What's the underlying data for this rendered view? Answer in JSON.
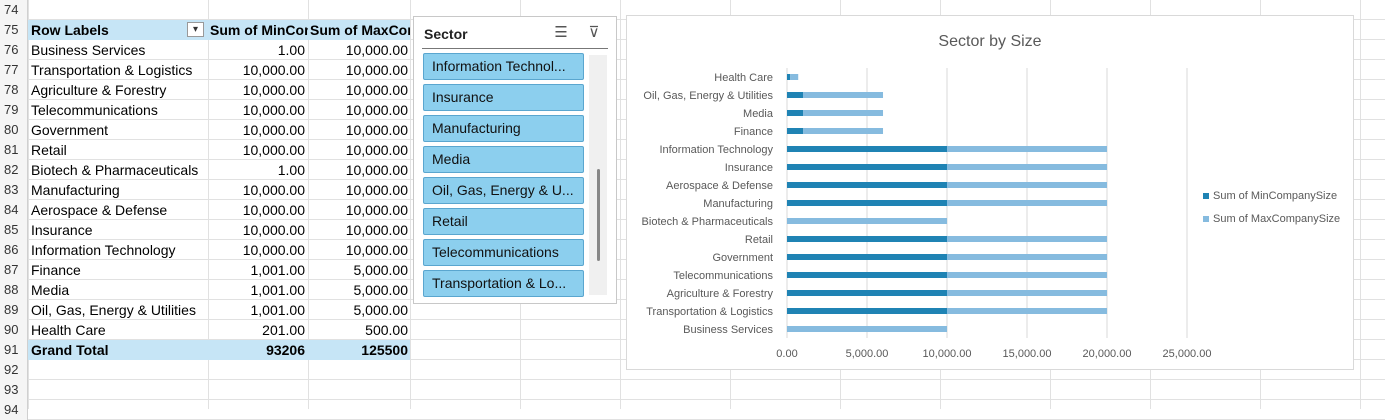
{
  "row_numbers": [
    "74",
    "75",
    "76",
    "77",
    "78",
    "79",
    "80",
    "81",
    "82",
    "83",
    "84",
    "85",
    "86",
    "87",
    "88",
    "89",
    "90",
    "91",
    "92",
    "93",
    "94"
  ],
  "pivot": {
    "header": {
      "labels": "Row Labels",
      "min": "Sum of MinCompanySize",
      "max": "Sum of MaxCompanySize"
    },
    "rows": [
      {
        "label": "Business Services",
        "min": "1.00",
        "max": "10,000.00"
      },
      {
        "label": "Transportation & Logistics",
        "min": "10,000.00",
        "max": "10,000.00"
      },
      {
        "label": "Agriculture & Forestry",
        "min": "10,000.00",
        "max": "10,000.00"
      },
      {
        "label": "Telecommunications",
        "min": "10,000.00",
        "max": "10,000.00"
      },
      {
        "label": "Government",
        "min": "10,000.00",
        "max": "10,000.00"
      },
      {
        "label": "Retail",
        "min": "10,000.00",
        "max": "10,000.00"
      },
      {
        "label": "Biotech & Pharmaceuticals",
        "min": "1.00",
        "max": "10,000.00"
      },
      {
        "label": "Manufacturing",
        "min": "10,000.00",
        "max": "10,000.00"
      },
      {
        "label": "Aerospace & Defense",
        "min": "10,000.00",
        "max": "10,000.00"
      },
      {
        "label": "Insurance",
        "min": "10,000.00",
        "max": "10,000.00"
      },
      {
        "label": "Information Technology",
        "min": "10,000.00",
        "max": "10,000.00"
      },
      {
        "label": "Finance",
        "min": "1,001.00",
        "max": "5,000.00"
      },
      {
        "label": "Media",
        "min": "1,001.00",
        "max": "5,000.00"
      },
      {
        "label": "Oil, Gas, Energy & Utilities",
        "min": "1,001.00",
        "max": "5,000.00"
      },
      {
        "label": "Health Care",
        "min": "201.00",
        "max": "500.00"
      }
    ],
    "total": {
      "label": "Grand Total",
      "min": "93206",
      "max": "125500"
    }
  },
  "slicer": {
    "title": "Sector",
    "items": [
      "Information Technol...",
      "Insurance",
      "Manufacturing",
      "Media",
      "Oil, Gas, Energy & U...",
      "Retail",
      "Telecommunications",
      "Transportation & Lo..."
    ]
  },
  "chart_data": {
    "type": "bar",
    "orientation": "horizontal",
    "stacked": true,
    "title": "Sector by Size",
    "categories": [
      "Health Care",
      "Oil, Gas, Energy & Utilities",
      "Media",
      "Finance",
      "Information Technology",
      "Insurance",
      "Aerospace & Defense",
      "Manufacturing",
      "Biotech & Pharmaceuticals",
      "Retail",
      "Government",
      "Telecommunications",
      "Agriculture & Forestry",
      "Transportation & Logistics",
      "Business Services"
    ],
    "series": [
      {
        "name": "Sum of MinCompanySize",
        "color": "#1f83b4",
        "values": [
          201,
          1001,
          1001,
          1001,
          10000,
          10000,
          10000,
          10000,
          1,
          10000,
          10000,
          10000,
          10000,
          10000,
          1
        ]
      },
      {
        "name": "Sum of MaxCompanySize",
        "color": "#86bbdf",
        "values": [
          500,
          5000,
          5000,
          5000,
          10000,
          10000,
          10000,
          10000,
          10000,
          10000,
          10000,
          10000,
          10000,
          10000,
          10000
        ]
      }
    ],
    "x_ticks": [
      "0.00",
      "5,000.00",
      "10,000.00",
      "15,000.00",
      "20,000.00",
      "25,000.00"
    ],
    "xlim": [
      0,
      25000
    ],
    "grid": true,
    "legend": "right"
  }
}
